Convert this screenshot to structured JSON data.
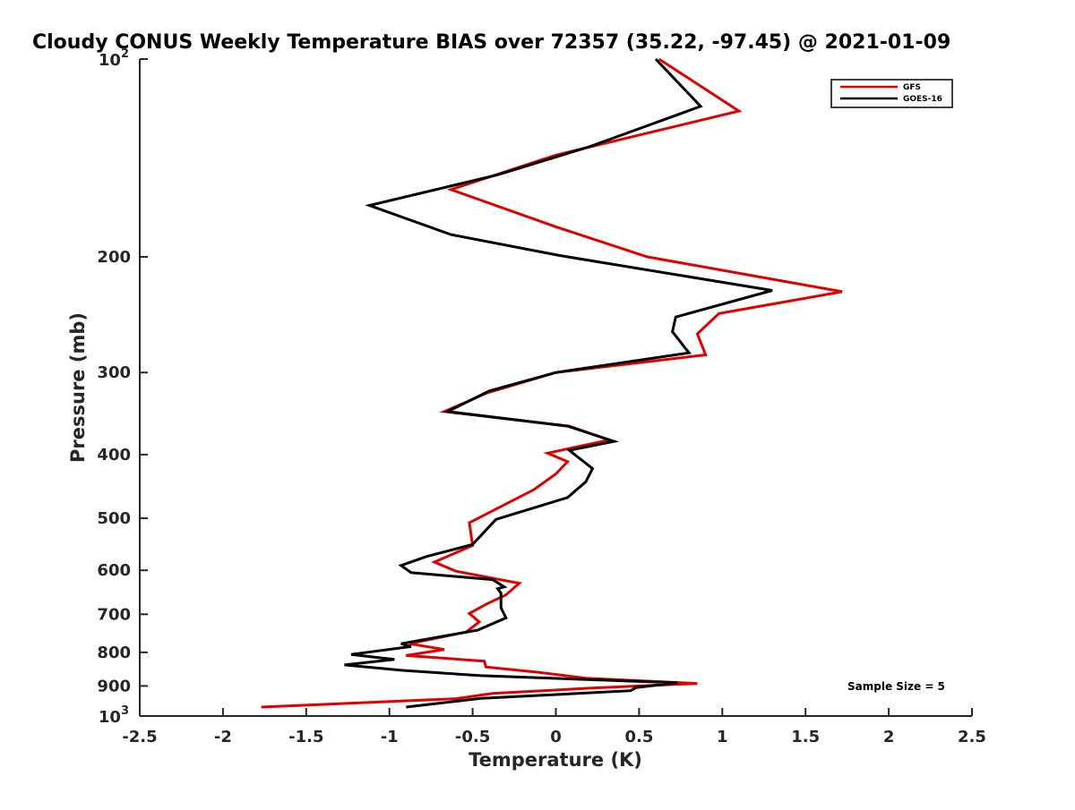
{
  "chart_data": {
    "type": "line",
    "title": "Cloudy CONUS Weekly Temperature BIAS over 72357 (35.22, -97.45) @ 2021-01-09",
    "xlabel": "Temperature (K)",
    "ylabel": "Pressure (mb)",
    "xlim": [
      -2.5,
      2.5
    ],
    "ylim": [
      100,
      1000
    ],
    "y_scale": "log",
    "y_reversed": true,
    "x_ticks": [
      "-2.5",
      "-2",
      "-1.5",
      "-1",
      "-0.5",
      "0",
      "0.5",
      "1",
      "1.5",
      "2",
      "2.5"
    ],
    "y_ticks": [
      {
        "value": 100,
        "base": "10",
        "exp": "2"
      },
      {
        "value": 200,
        "label": "200"
      },
      {
        "value": 300,
        "label": "300"
      },
      {
        "value": 400,
        "label": "400"
      },
      {
        "value": 500,
        "label": "500"
      },
      {
        "value": 600,
        "label": "600"
      },
      {
        "value": 700,
        "label": "700"
      },
      {
        "value": 800,
        "label": "800"
      },
      {
        "value": 900,
        "label": "900"
      },
      {
        "value": 1000,
        "base": "10",
        "exp": "3"
      }
    ],
    "grid": false,
    "legend_position": "top-right",
    "annotation": "Sample Size = 5",
    "series": [
      {
        "name": "GFS",
        "color": "#e00000",
        "points": [
          [
            0.62,
            100
          ],
          [
            1.1,
            120
          ],
          [
            0.0,
            140
          ],
          [
            -0.63,
            158
          ],
          [
            0.0,
            180
          ],
          [
            0.55,
            200
          ],
          [
            1.72,
            226
          ],
          [
            0.98,
            244
          ],
          [
            0.85,
            262
          ],
          [
            0.9,
            282
          ],
          [
            0.0,
            300
          ],
          [
            -0.41,
            322
          ],
          [
            -0.67,
            344
          ],
          [
            0.08,
            362
          ],
          [
            0.32,
            380
          ],
          [
            -0.05,
            398
          ],
          [
            0.07,
            410
          ],
          [
            0.0,
            428
          ],
          [
            -0.13,
            452
          ],
          [
            -0.52,
            508
          ],
          [
            -0.5,
            550
          ],
          [
            -0.73,
            583
          ],
          [
            -0.6,
            602
          ],
          [
            -0.22,
            628
          ],
          [
            -0.3,
            654
          ],
          [
            -0.42,
            676
          ],
          [
            -0.52,
            698
          ],
          [
            -0.46,
            719
          ],
          [
            -0.54,
            745
          ],
          [
            -0.88,
            776
          ],
          [
            -0.67,
            792
          ],
          [
            -0.9,
            809
          ],
          [
            -0.43,
            825
          ],
          [
            -0.42,
            842
          ],
          [
            -0.1,
            858
          ],
          [
            0.18,
            876
          ],
          [
            0.85,
            892
          ],
          [
            0.2,
            907
          ],
          [
            -0.38,
            924
          ],
          [
            -0.6,
            941
          ],
          [
            -1.77,
            969
          ]
        ]
      },
      {
        "name": "GOES-16",
        "color": "#000000",
        "points": [
          [
            0.6,
            100
          ],
          [
            0.87,
            118
          ],
          [
            0.2,
            136
          ],
          [
            -0.35,
            150
          ],
          [
            -1.12,
            167
          ],
          [
            -0.63,
            185
          ],
          [
            0.02,
            199
          ],
          [
            1.3,
            225
          ],
          [
            0.72,
            247
          ],
          [
            0.7,
            260
          ],
          [
            0.8,
            280
          ],
          [
            0.0,
            300
          ],
          [
            -0.4,
            320
          ],
          [
            -0.65,
            344
          ],
          [
            0.07,
            362
          ],
          [
            0.35,
            382
          ],
          [
            0.08,
            394
          ],
          [
            0.22,
            420
          ],
          [
            0.18,
            440
          ],
          [
            0.07,
            465
          ],
          [
            -0.36,
            502
          ],
          [
            -0.5,
            548
          ],
          [
            -0.78,
            572
          ],
          [
            -0.93,
            590
          ],
          [
            -0.87,
            605
          ],
          [
            -0.38,
            620
          ],
          [
            -0.31,
            636
          ],
          [
            -0.35,
            640
          ],
          [
            -0.33,
            650
          ],
          [
            -0.33,
            684
          ],
          [
            -0.3,
            709
          ],
          [
            -0.47,
            740
          ],
          [
            -0.93,
            776
          ],
          [
            -0.87,
            784
          ],
          [
            -1.23,
            806
          ],
          [
            -0.97,
            820
          ],
          [
            -1.27,
            836
          ],
          [
            -0.93,
            852
          ],
          [
            -0.45,
            868
          ],
          [
            0.73,
            890
          ],
          [
            0.48,
            905
          ],
          [
            0.45,
            915
          ],
          [
            -0.45,
            940
          ],
          [
            -0.9,
            969
          ]
        ]
      }
    ]
  }
}
